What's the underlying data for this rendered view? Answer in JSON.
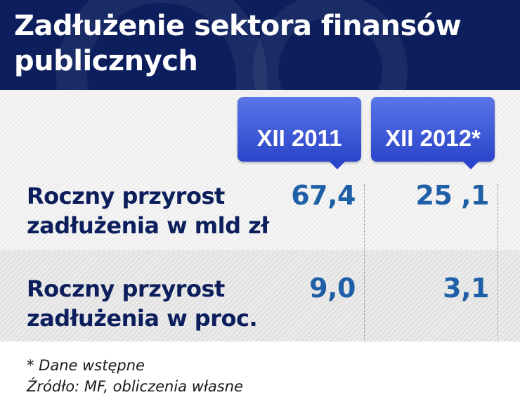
{
  "header": {
    "title": "Zadłużenie sektora finansów publicznych"
  },
  "columns": [
    "XII 2011",
    "XII 2012*"
  ],
  "rows": [
    {
      "label": "Roczny przyrost zadłużenia w mld zł",
      "values": [
        "67,4",
        "25 ,1"
      ]
    },
    {
      "label": "Roczny przyrost zadłużenia w proc.",
      "values": [
        "9,0",
        "3,1"
      ]
    }
  ],
  "footnotes": {
    "note": "* Dane wstępne",
    "source": "Źródło: MF, obliczenia własne"
  },
  "colors": {
    "header_bg": "#0c1f5c",
    "column_header": "#3a56d8",
    "label_text": "#0c1f5c",
    "value_text": "#1e5fa8"
  },
  "chart_data": {
    "type": "table",
    "title": "Zadłużenie sektora finansów publicznych",
    "columns": [
      "XII 2011",
      "XII 2012*"
    ],
    "rows": [
      {
        "name": "Roczny przyrost zadłużenia w mld zł",
        "values": [
          67.4,
          25.1
        ]
      },
      {
        "name": "Roczny przyrost zadłużenia w proc.",
        "values": [
          9.0,
          3.1
        ]
      }
    ]
  }
}
